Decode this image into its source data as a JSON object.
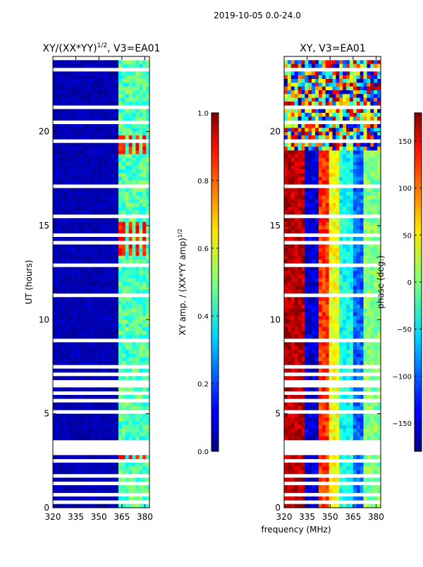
{
  "figure_title": "2019-10-05 0.0-24.0",
  "chart_data": [
    {
      "type": "heatmap",
      "title": "XY/(XX*YY)^{1/2}, V3=EA01",
      "title_main": "XY/(XX*YY)",
      "title_exp": "1/2",
      "title_tail": ", V3=EA01",
      "xlabel": "",
      "ylabel": "UT (hours)",
      "xlim": [
        320,
        383
      ],
      "ylim": [
        0,
        24
      ],
      "xticks": [
        320,
        335,
        350,
        365,
        380
      ],
      "yticks": [
        0,
        5,
        10,
        15,
        20
      ],
      "colorbar": {
        "label": "XY amp. / (XX*YY amp)^{1/2}",
        "label_main": "XY amp. / (XX*YY amp)",
        "label_exp": "1/2",
        "range": [
          0.0,
          1.0
        ],
        "ticks": [
          "0.0",
          "0.2",
          "0.4",
          "0.6",
          "0.8",
          "1.0"
        ],
        "colormap": "jet"
      },
      "features": {
        "background_value": 0.05,
        "bright_band_mhz": [
          362,
          382
        ],
        "bright_band_value": 0.45,
        "hot_channels_mhz": [
          365,
          371,
          376,
          380
        ],
        "hot_hours": [
          [
            2.6,
            3.4
          ],
          [
            13.5,
            15.2
          ],
          [
            18.9,
            19.9
          ]
        ],
        "hot_value": 0.85
      }
    },
    {
      "type": "heatmap",
      "title": "XY, V3=EA01",
      "xlabel": "frequency (MHz)",
      "ylabel": "",
      "xlim": [
        320,
        383
      ],
      "ylim": [
        0,
        24
      ],
      "xticks": [
        320,
        335,
        350,
        365,
        380
      ],
      "yticks": [
        0,
        5,
        10,
        15,
        20
      ],
      "colorbar": {
        "label": "phase (deg.)",
        "range": [
          -180,
          180
        ],
        "ticks": [
          "150",
          "100",
          "50",
          "0",
          "−50",
          "−100",
          "−150"
        ],
        "colormap": "jet"
      },
      "features": {
        "phase_stripes_mhz": [
          {
            "f": 331,
            "deg": 160
          },
          {
            "f": 338,
            "deg": -150
          },
          {
            "f": 346,
            "deg": 120
          },
          {
            "f": 352,
            "deg": 40
          },
          {
            "f": 360,
            "deg": -40
          },
          {
            "f": 368,
            "deg": -100
          },
          {
            "f": 376,
            "deg": 0
          }
        ],
        "noisy_hours": [
          [
            19.0,
            24.0
          ]
        ]
      }
    }
  ]
}
